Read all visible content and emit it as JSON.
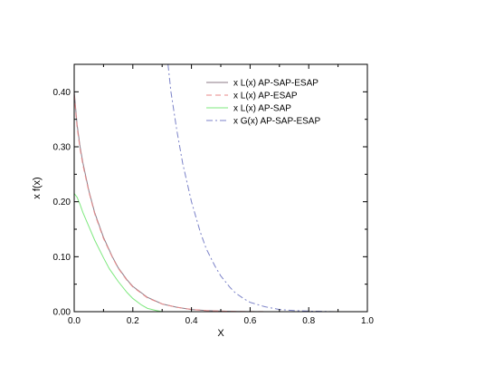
{
  "chart_data": {
    "type": "line",
    "title": "",
    "xlabel": "X",
    "ylabel": "x f(x)",
    "xlim": [
      0.0,
      1.0
    ],
    "ylim": [
      0.0,
      0.45
    ],
    "xticks": [
      0.0,
      0.2,
      0.4,
      0.6,
      0.8,
      1.0
    ],
    "xtick_labels": [
      "0.0",
      "0.2",
      "0.4",
      "0.6",
      "0.8",
      "1.0"
    ],
    "yticks": [
      0.0,
      0.1,
      0.2,
      0.3,
      0.4
    ],
    "ytick_labels": [
      "0.00",
      "0.10",
      "0.20",
      "0.30",
      "0.40"
    ],
    "grid": false,
    "legend_position": "top-right",
    "series": [
      {
        "name": "x L(x) AP-SAP-ESAP",
        "color": "#8b7a86",
        "dash": "solid",
        "x": [
          0.0,
          0.01,
          0.02,
          0.03,
          0.05,
          0.07,
          0.1,
          0.13,
          0.15,
          0.18,
          0.2,
          0.25,
          0.3,
          0.35,
          0.4,
          0.45,
          0.5,
          0.55,
          0.6,
          0.65,
          0.7
        ],
        "y": [
          0.4,
          0.34,
          0.3,
          0.27,
          0.22,
          0.18,
          0.135,
          0.1,
          0.08,
          0.058,
          0.046,
          0.026,
          0.014,
          0.008,
          0.004,
          0.002,
          0.001,
          0.0005,
          0.0002,
          0.0001,
          0.0
        ]
      },
      {
        "name": "x L(x) AP-ESAP",
        "color": "#e88a8a",
        "dash": "dashed",
        "x": [
          0.0,
          0.01,
          0.02,
          0.03,
          0.05,
          0.07,
          0.1,
          0.13,
          0.15,
          0.18,
          0.2,
          0.25,
          0.3,
          0.35,
          0.4,
          0.45,
          0.5,
          0.55,
          0.6,
          0.65,
          0.7
        ],
        "y": [
          0.395,
          0.335,
          0.296,
          0.266,
          0.218,
          0.178,
          0.133,
          0.099,
          0.079,
          0.057,
          0.045,
          0.025,
          0.014,
          0.008,
          0.004,
          0.002,
          0.001,
          0.0005,
          0.0002,
          0.0001,
          0.0
        ]
      },
      {
        "name": "x L(x) AP-SAP",
        "color": "#7ee87e",
        "dash": "solid",
        "x": [
          0.0,
          0.01,
          0.02,
          0.03,
          0.05,
          0.07,
          0.1,
          0.12,
          0.15,
          0.18,
          0.2,
          0.23,
          0.25,
          0.28,
          0.3
        ],
        "y": [
          0.215,
          0.208,
          0.195,
          0.18,
          0.155,
          0.13,
          0.098,
          0.078,
          0.055,
          0.035,
          0.024,
          0.012,
          0.006,
          0.002,
          0.0
        ]
      },
      {
        "name": "x G(x) AP-SAP-ESAP",
        "color": "#7b82c8",
        "dash": "dashdot",
        "x": [
          0.32,
          0.33,
          0.35,
          0.37,
          0.4,
          0.43,
          0.45,
          0.48,
          0.5,
          0.53,
          0.55,
          0.58,
          0.6,
          0.65,
          0.7,
          0.75,
          0.8,
          0.85,
          0.9
        ],
        "y": [
          0.45,
          0.4,
          0.33,
          0.27,
          0.2,
          0.145,
          0.115,
          0.083,
          0.065,
          0.045,
          0.034,
          0.023,
          0.017,
          0.009,
          0.004,
          0.002,
          0.001,
          0.0005,
          0.0
        ]
      }
    ]
  }
}
